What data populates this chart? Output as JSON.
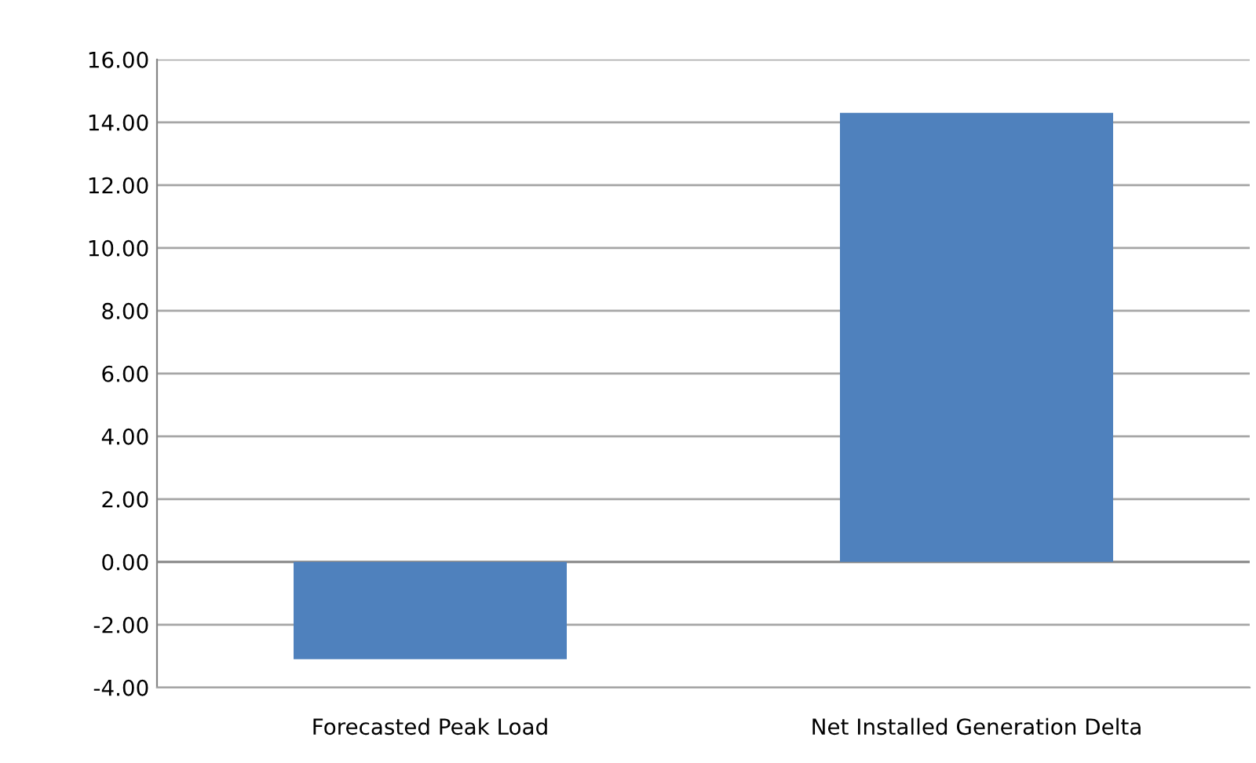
{
  "chart_data": {
    "type": "bar",
    "categories": [
      "Forecasted Peak Load",
      "Net Installed Generation Delta"
    ],
    "values": [
      -3.1,
      14.3
    ],
    "color": "#4f81bd",
    "ylim": [
      -4,
      16
    ],
    "yticks": [
      {
        "value": -4,
        "label": "-4.00"
      },
      {
        "value": -2,
        "label": "-2.00"
      },
      {
        "value": 0,
        "label": "0.00"
      },
      {
        "value": 2,
        "label": "2.00"
      },
      {
        "value": 4,
        "label": "4.00"
      },
      {
        "value": 6,
        "label": "6.00"
      },
      {
        "value": 8,
        "label": "8.00"
      },
      {
        "value": 10,
        "label": "10.00"
      },
      {
        "value": 12,
        "label": "12.00"
      },
      {
        "value": 14,
        "label": "14.00"
      },
      {
        "value": 16,
        "label": "16.00"
      }
    ],
    "grid": "y"
  }
}
